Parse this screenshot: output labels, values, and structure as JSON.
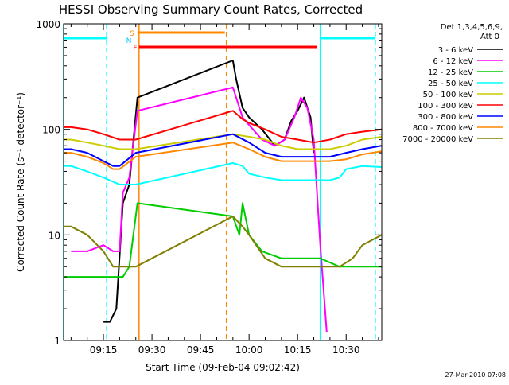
{
  "chart_data": {
    "type": "line",
    "title": "HESSI Observing Summary Count Rates, Corrected",
    "xlabel": "Start Time (09-Feb-04 09:02:42)",
    "ylabel": "Corrected Count Rate (s⁻¹ detector⁻¹)",
    "yscale": "log",
    "ylim": [
      1,
      1000
    ],
    "xlim": [
      "09:02:42",
      "10:41:00"
    ],
    "x_ticks": [
      "09:15",
      "09:30",
      "09:45",
      "10:00",
      "10:15",
      "10:30"
    ],
    "y_ticks": [
      1,
      10,
      100,
      1000
    ],
    "legend": {
      "header_line1": "Det 1,3,4,5,6,9,",
      "header_line2": "Att 0",
      "placement": "right"
    },
    "series": [
      {
        "name": "3 - 6 keV",
        "color": "#000000",
        "x": [
          "09:15:00",
          "09:17:00",
          "09:19:00",
          "09:21:00",
          "09:23:00",
          "09:25:30",
          "09:55:00",
          "09:56:00",
          "09:58:00",
          "10:00:00",
          "10:04:00",
          "10:08:00",
          "10:11:00",
          "10:13:00",
          "10:15:00",
          "10:17:00",
          "10:19:00",
          "10:20:00"
        ],
        "y": [
          1.5,
          1.5,
          2.0,
          20,
          30,
          200,
          450,
          300,
          160,
          130,
          100,
          70,
          80,
          120,
          150,
          200,
          130,
          60
        ]
      },
      {
        "name": "6 - 12 keV",
        "color": "#ff00ff",
        "x": [
          "09:05:00",
          "09:10:00",
          "09:15:00",
          "09:18:00",
          "09:20:00",
          "09:21:00",
          "09:23:00",
          "09:25:30",
          "09:55:00",
          "09:58:00",
          "10:00:00",
          "10:04:00",
          "10:08:00",
          "10:11:00",
          "10:14:00",
          "10:16:00",
          "10:18:00",
          "10:20:00",
          "10:22:00",
          "10:24:00"
        ],
        "y": [
          7,
          7,
          8,
          7,
          7,
          25,
          35,
          150,
          250,
          130,
          110,
          80,
          70,
          80,
          130,
          200,
          160,
          80,
          8,
          1.2
        ]
      },
      {
        "name": "12 - 25 keV",
        "color": "#00cc00",
        "x": [
          "09:02:42",
          "09:15:00",
          "09:18:00",
          "09:21:00",
          "09:23:00",
          "09:25:30",
          "09:55:00",
          "09:57:00",
          "09:58:00",
          "10:00:00",
          "10:04:00",
          "10:10:00",
          "10:16:00",
          "10:20:00",
          "10:22:00",
          "10:28:00",
          "10:35:00",
          "10:41:00"
        ],
        "y": [
          4,
          4,
          4,
          4,
          5,
          20,
          15,
          10,
          20,
          10,
          7,
          6,
          6,
          6,
          6,
          5,
          5,
          5
        ]
      },
      {
        "name": "25 - 50 keV",
        "color": "#00ffff",
        "x": [
          "09:02:42",
          "09:05:00",
          "09:10:00",
          "09:15:00",
          "09:20:00",
          "09:25:00",
          "09:55:00",
          "09:58:00",
          "10:00:00",
          "10:05:00",
          "10:10:00",
          "10:15:00",
          "10:20:00",
          "10:25:00",
          "10:28:00",
          "10:30:00",
          "10:35:00",
          "10:41:00"
        ],
        "y": [
          45,
          45,
          40,
          35,
          30,
          30,
          48,
          45,
          38,
          35,
          33,
          33,
          33,
          33,
          35,
          42,
          45,
          44
        ]
      },
      {
        "name": "50 - 100 keV",
        "color": "#cccc00",
        "x": [
          "09:02:42",
          "09:05:00",
          "09:10:00",
          "09:15:00",
          "09:20:00",
          "09:25:00",
          "09:55:00",
          "10:00:00",
          "10:05:00",
          "10:10:00",
          "10:15:00",
          "10:20:00",
          "10:25:00",
          "10:30:00",
          "10:35:00",
          "10:41:00"
        ],
        "y": [
          80,
          80,
          75,
          70,
          65,
          65,
          90,
          85,
          80,
          70,
          65,
          65,
          65,
          70,
          80,
          85
        ]
      },
      {
        "name": "100 - 300 keV",
        "color": "#ff0000",
        "x": [
          "09:02:42",
          "09:05:00",
          "09:10:00",
          "09:15:00",
          "09:20:00",
          "09:25:00",
          "09:55:00",
          "09:58:00",
          "10:00:00",
          "10:05:00",
          "10:10:00",
          "10:15:00",
          "10:20:00",
          "10:25:00",
          "10:30:00",
          "10:35:00",
          "10:41:00"
        ],
        "y": [
          105,
          105,
          100,
          90,
          80,
          80,
          150,
          125,
          115,
          100,
          85,
          80,
          75,
          80,
          90,
          95,
          100
        ]
      },
      {
        "name": "300 - 800 keV",
        "color": "#0000ff",
        "x": [
          "09:02:42",
          "09:05:00",
          "09:10:00",
          "09:15:00",
          "09:18:00",
          "09:20:00",
          "09:25:00",
          "09:55:00",
          "10:00:00",
          "10:05:00",
          "10:10:00",
          "10:15:00",
          "10:20:00",
          "10:25:00",
          "10:30:00",
          "10:35:00",
          "10:41:00"
        ],
        "y": [
          65,
          65,
          60,
          50,
          45,
          45,
          60,
          90,
          75,
          60,
          55,
          55,
          55,
          55,
          60,
          65,
          70
        ]
      },
      {
        "name": "800 - 7000 keV",
        "color": "#ff8800",
        "x": [
          "09:02:42",
          "09:05:00",
          "09:10:00",
          "09:15:00",
          "09:18:00",
          "09:20:00",
          "09:25:00",
          "09:55:00",
          "10:00:00",
          "10:05:00",
          "10:10:00",
          "10:15:00",
          "10:20:00",
          "10:25:00",
          "10:30:00",
          "10:35:00",
          "10:41:00"
        ],
        "y": [
          60,
          60,
          55,
          48,
          42,
          42,
          55,
          75,
          65,
          55,
          50,
          50,
          50,
          50,
          52,
          58,
          62
        ]
      },
      {
        "name": "7000 - 20000 keV",
        "color": "#808000",
        "x": [
          "09:02:42",
          "09:05:00",
          "09:10:00",
          "09:15:00",
          "09:18:00",
          "09:20:00",
          "09:22:00",
          "09:25:00",
          "09:55:00",
          "09:58:00",
          "10:00:00",
          "10:05:00",
          "10:10:00",
          "10:15:00",
          "10:20:00",
          "10:25:00",
          "10:28:00",
          "10:32:00",
          "10:35:00",
          "10:41:00"
        ],
        "y": [
          12,
          12,
          10,
          7,
          5,
          5,
          5,
          5,
          15,
          12,
          10,
          6,
          5,
          5,
          5,
          5,
          5,
          6,
          8,
          10
        ]
      }
    ],
    "flags": [
      {
        "label": "S",
        "color": "#ff8800",
        "x_start": "09:25:30",
        "x_end": "09:52:30"
      },
      {
        "label": "N",
        "color": "#00ccff",
        "x_start": null,
        "x_end": null
      },
      {
        "label": "F",
        "color": "#ff0000",
        "x_start": "09:26:00",
        "x_end": "10:21:00"
      }
    ],
    "night_bars": {
      "color": "#00ffff",
      "segments": [
        [
          "09:02:42",
          "09:16:00"
        ],
        [
          "10:22:00",
          "10:39:00"
        ]
      ]
    },
    "vertical_markers": [
      {
        "x": "09:02:42",
        "color": "#00ffff",
        "style": "solid"
      },
      {
        "x": "09:16:00",
        "color": "#00ffff",
        "style": "dashed"
      },
      {
        "x": "09:26:00",
        "color": "#ff8800",
        "style": "solid"
      },
      {
        "x": "09:53:00",
        "color": "#ff8800",
        "style": "dashed"
      },
      {
        "x": "10:22:00",
        "color": "#00ffff",
        "style": "solid"
      },
      {
        "x": "10:39:00",
        "color": "#00ffff",
        "style": "dashed"
      }
    ]
  },
  "footer": {
    "timestamp": "27-Mar-2010 07:08"
  }
}
